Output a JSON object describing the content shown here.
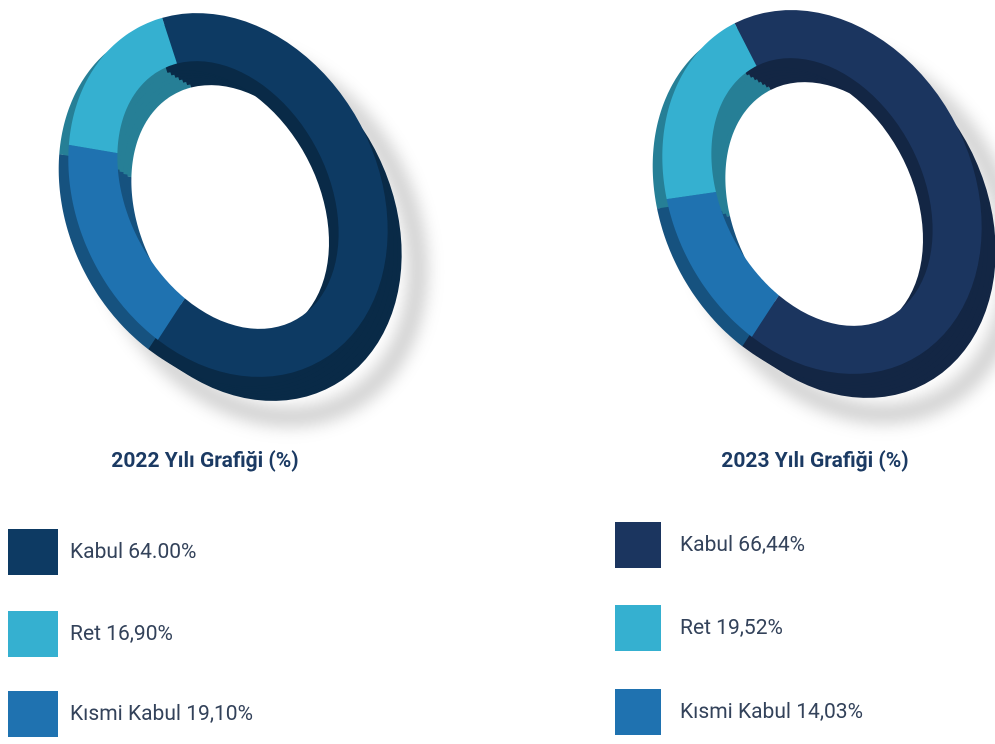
{
  "chart_data": [
    {
      "type": "donut",
      "title": "2022 Yılı Grafiği (%)",
      "categories": [
        "Kabul",
        "Ret",
        "Kısmi Kabul"
      ],
      "values": [
        64,
        16.9,
        19.1
      ],
      "value_labels": [
        "64.00%",
        "16,90%",
        "19,10%"
      ],
      "colors": [
        "#0d3a63",
        "#35b0d0",
        "#1f72b0"
      ]
    },
    {
      "type": "donut",
      "title": "2023 Yılı Grafiği (%)",
      "categories": [
        "Kabul",
        "Ret",
        "Kısmi Kabul"
      ],
      "values": [
        66.44,
        19.52,
        14.03
      ],
      "value_labels": [
        "66,44%",
        "19,52%",
        "14,03%"
      ],
      "colors": [
        "#1b355f",
        "#35b0d0",
        "#1f72b0"
      ]
    }
  ]
}
